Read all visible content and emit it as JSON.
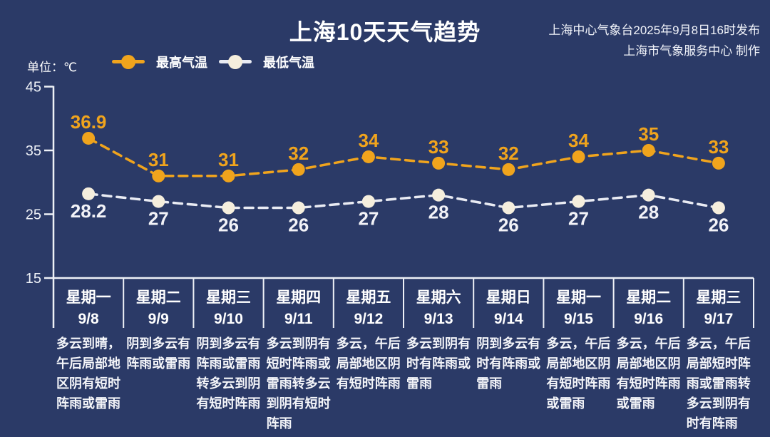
{
  "header": {
    "title": "上海10天天气趋势",
    "publisher_line1": "上海中心气象台2025年9月8日16时发布",
    "publisher_line2": "上海市气象服务中心 制作"
  },
  "legend": {
    "high_label": "最高气温",
    "low_label": "最低气温"
  },
  "unit_label": "单位：℃",
  "colors": {
    "background": "#2b3a67",
    "high": "#f0a41d",
    "low_dot": "#f5eedd",
    "low_line": "#e9ebf3",
    "low_value_text": "#f2f2f7",
    "axis": "#eef1f7",
    "text": "#ffffff"
  },
  "chart_data": {
    "type": "line",
    "title": "上海10天天气趋势",
    "unit": "℃",
    "categories": [
      "9/8",
      "9/9",
      "9/10",
      "9/11",
      "9/12",
      "9/13",
      "9/14",
      "9/15",
      "9/16",
      "9/17"
    ],
    "weekday_labels": [
      "星期一",
      "星期二",
      "星期三",
      "星期四",
      "星期五",
      "星期六",
      "星期日",
      "星期一",
      "星期二",
      "星期三"
    ],
    "series": [
      {
        "name": "最高气温",
        "values": [
          36.9,
          31,
          31,
          32,
          34,
          33,
          32,
          34,
          35,
          33
        ]
      },
      {
        "name": "最低气温",
        "values": [
          28.2,
          27,
          26,
          26,
          27,
          28,
          26,
          27,
          28,
          26
        ]
      }
    ],
    "ylim": [
      15,
      45
    ],
    "yticks": [
      15,
      25,
      35,
      45
    ],
    "grid": false,
    "line_style": "dashed",
    "legend_position": "top-left"
  },
  "days": [
    {
      "weekday": "星期一",
      "date": "9/8",
      "description": "多云到晴，午后局部地区阴有短时阵雨或雷雨"
    },
    {
      "weekday": "星期二",
      "date": "9/9",
      "description": "阴到多云有阵雨或雷雨"
    },
    {
      "weekday": "星期三",
      "date": "9/10",
      "description": "阴到多云有阵雨或雷雨转多云到阴有短时阵雨"
    },
    {
      "weekday": "星期四",
      "date": "9/11",
      "description": "多云到阴有短时阵雨或雷雨转多云到阴有短时阵雨"
    },
    {
      "weekday": "星期五",
      "date": "9/12",
      "description": "多云，午后局部地区阴有短时阵雨"
    },
    {
      "weekday": "星期六",
      "date": "9/13",
      "description": "多云到阴有时有阵雨或雷雨"
    },
    {
      "weekday": "星期日",
      "date": "9/14",
      "description": "阴到多云有时有阵雨或雷雨"
    },
    {
      "weekday": "星期一",
      "date": "9/15",
      "description": "多云，午后局部地区阴有短时阵雨或雷雨"
    },
    {
      "weekday": "星期二",
      "date": "9/16",
      "description": "多云，午后局部地区阴有短时阵雨或雷雨"
    },
    {
      "weekday": "星期三",
      "date": "9/17",
      "description": "多云，午后局部短时阵雨或雷雨转多云到阴有时有阵雨"
    }
  ]
}
